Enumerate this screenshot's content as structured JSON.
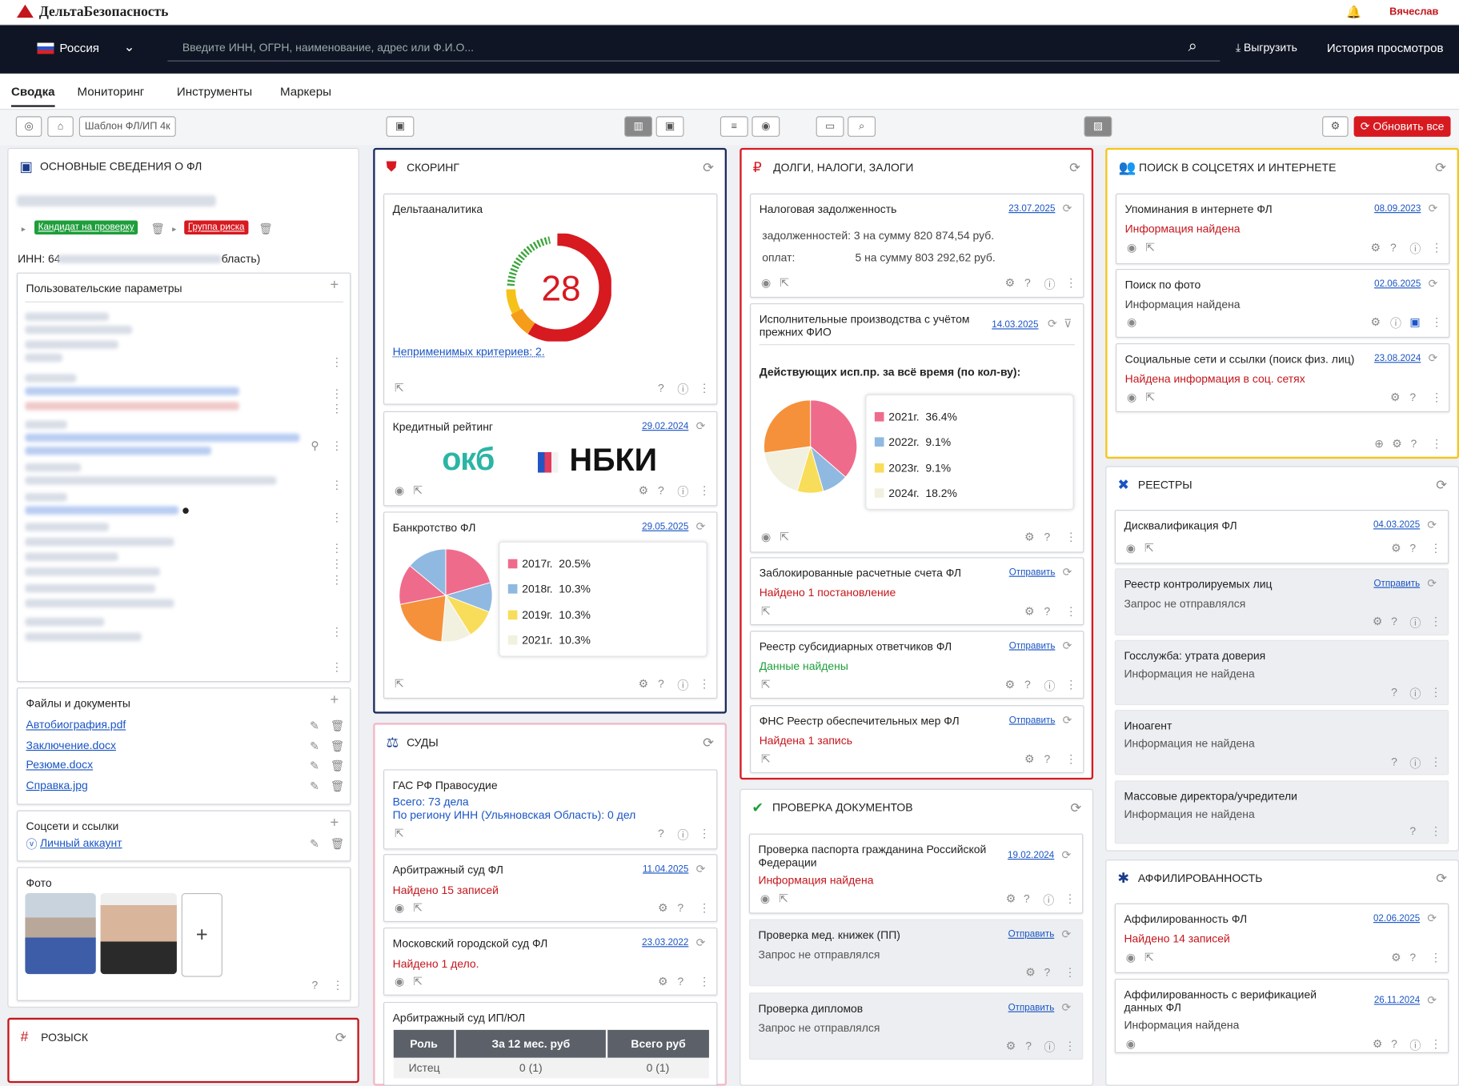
{
  "app": {
    "logo": "ДельтаБезопасность",
    "user": "Вячеслав",
    "country": "Россия",
    "search_placeholder": "Введите ИНН, ОГРН, наименование, адрес или Ф.И.О...",
    "export": "Выгрузить",
    "history": "История просмотров"
  },
  "tabs": [
    "Сводка",
    "Мониторинг",
    "Инструменты",
    "Маркеры"
  ],
  "toolbar": {
    "template": "Шаблон ФЛ/ИП 4к",
    "refresh_all": "Обновить все"
  },
  "basic": {
    "title": "ОСНОВНЫЕ СВЕДЕНИЯ О ФЛ",
    "tag1": "Кандидат на проверку",
    "tag2": "Группа риска",
    "inn": "ИНН: 64",
    "inn_suffix": "бласть)",
    "params_title": "Пользовательские параметры",
    "files_title": "Файлы и документы",
    "files": [
      "Автобиография.pdf",
      "Заключение.docx",
      "Резюме.docx",
      "Справка.jpg"
    ],
    "social_title": "Соцсети и ссылки",
    "social_link": "Личный аккаунт",
    "photo_title": "Фото",
    "photo_add": "+"
  },
  "wanted": {
    "title": "РОЗЫСК"
  },
  "scoring": {
    "title": "СКОРИНГ",
    "delta": "Дельтааналитика",
    "score": "28",
    "inapplicable": "Неприменимых критериев: 2.",
    "credit": "Кредитный рейтинг",
    "credit_date": "29.02.2024",
    "okb": "окб",
    "nbki": "НБКИ",
    "bankr": "Банкротство ФЛ",
    "bankr_date": "29.05.2025"
  },
  "courts": {
    "title": "СУДЫ",
    "gas": "ГАС РФ Правосудие",
    "gas_total": "Всего: 73 дела",
    "gas_region": "По региону ИНН (Ульяновская Область): 0 дел",
    "arb": "Арбитражный суд ФЛ",
    "arb_date": "11.04.2025",
    "arb_found": "Найдено 15 записей",
    "msk": "Московский городской суд ФЛ",
    "msk_date": "23.03.2022",
    "msk_found": "Найдено 1 дело.",
    "arbip": "Арбитражный суд ИП/ЮЛ",
    "table_headers": [
      "Роль",
      "За 12 мес. руб",
      "Всего руб"
    ],
    "table_row": [
      "Истец",
      "0 (1)",
      "0 (1)"
    ]
  },
  "debts": {
    "title": "ДОЛГИ, НАЛОГИ, ЗАЛОГИ",
    "tax": "Налоговая задолженность",
    "tax_date": "23.07.2025",
    "tax_l1": "задолженностей: 3 на сумму 820 874,54 руб.",
    "tax_l2a": "оплат:",
    "tax_l2b": "5 на сумму 803 292,62 руб.",
    "isp": "Исполнительные производства с учётом прежних ФИО",
    "isp_date": "14.03.2025",
    "isp_sub": "Действующих исп.пр. за всё время (по кол-ву):",
    "blocked": "Заблокированные расчетные счета ФЛ",
    "blocked_found": "Найдено 1 постановление",
    "subs": "Реестр субсидиарных ответчиков ФЛ",
    "subs_found": "Данные найдены",
    "fns": "ФНС Реестр обеспечительных мер ФЛ",
    "fns_found": "Найдена 1 запись",
    "send": "Отправить"
  },
  "docs": {
    "title": "ПРОВЕРКА ДОКУМЕНТОВ",
    "passport": "Проверка паспорта гражданина Российской Федерации",
    "passport_date": "19.02.2024",
    "passport_found": "Информация найдена",
    "med": "Проверка мед. книжек (ПП)",
    "dipl": "Проверка дипломов",
    "not_sent": "Запрос не отправлялся",
    "send": "Отправить"
  },
  "social": {
    "title": "ПОИСК В СОЦСЕТЯХ И ИНТЕРНЕТЕ",
    "mentions": "Упоминания в интернете ФЛ",
    "mentions_date": "08.09.2023",
    "mentions_found": "Информация найдена",
    "photo": "Поиск по фото",
    "photo_date": "02.06.2025",
    "photo_found": "Информация найдена",
    "soc": "Социальные сети и ссылки (поиск физ. лиц)",
    "soc_date": "23.08.2024",
    "soc_found": "Найдена информация в соц. сетях"
  },
  "registers": {
    "title": "РЕЕСТРЫ",
    "disq": "Дисквалификация ФЛ",
    "disq_date": "04.03.2025",
    "control": "Реестр контролируемых лиц",
    "control_send": "Отправить",
    "control_status": "Запрос не отправлялся",
    "gos": "Госслужба: утрата доверия",
    "gos_status": "Информация не найдена",
    "agent": "Иноагент",
    "agent_status": "Информация не найдена",
    "mass": "Массовые директора/учредители",
    "mass_status": "Информация не найдена"
  },
  "affil": {
    "title": "АФФИЛИРОВАННОСТЬ",
    "a1": "Аффилированность ФЛ",
    "a1_date": "02.06.2025",
    "a1_found": "Найдено 14 записей",
    "a2": "Аффилированность с верификацией данных ФЛ",
    "a2_date": "26.11.2024",
    "a2_found": "Информация найдена"
  },
  "chart_data": [
    {
      "type": "pie",
      "title": "Банкротство ФЛ",
      "legend": [
        {
          "label": "2017г.",
          "value": "20.5%",
          "color": "#ef6b8c"
        },
        {
          "label": "2018г.",
          "value": "10.3%",
          "color": "#8fb9e0"
        },
        {
          "label": "2019г.",
          "value": "10.3%",
          "color": "#f8dd5a"
        },
        {
          "label": "2021г.",
          "value": "10.3%",
          "color": "#f2f0df"
        }
      ],
      "slices": [
        {
          "color": "#ef6b8c",
          "value": 20.5
        },
        {
          "color": "#8fb9e0",
          "value": 10.3
        },
        {
          "color": "#f8dd5a",
          "value": 10.3
        },
        {
          "color": "#f2f0df",
          "value": 10.3
        },
        {
          "color": "#f5913a",
          "value": 20.5
        },
        {
          "color": "#ef6b8c",
          "value": 14.1
        },
        {
          "color": "#8fb9e0",
          "value": 14.0
        }
      ]
    },
    {
      "type": "pie",
      "title": "Действующих исп.пр. за всё время (по кол-ву):",
      "legend": [
        {
          "label": "2021г.",
          "value": "36.4%",
          "color": "#ef6b8c"
        },
        {
          "label": "2022г.",
          "value": "9.1%",
          "color": "#8fb9e0"
        },
        {
          "label": "2023г.",
          "value": "9.1%",
          "color": "#f8dd5a"
        },
        {
          "label": "2024г.",
          "value": "18.2%",
          "color": "#f2f0df"
        }
      ],
      "slices": [
        {
          "color": "#ef6b8c",
          "value": 36.4
        },
        {
          "color": "#8fb9e0",
          "value": 9.1
        },
        {
          "color": "#f8dd5a",
          "value": 9.1
        },
        {
          "color": "#f2f0df",
          "value": 18.2
        },
        {
          "color": "#f5913a",
          "value": 27.2
        }
      ]
    }
  ]
}
